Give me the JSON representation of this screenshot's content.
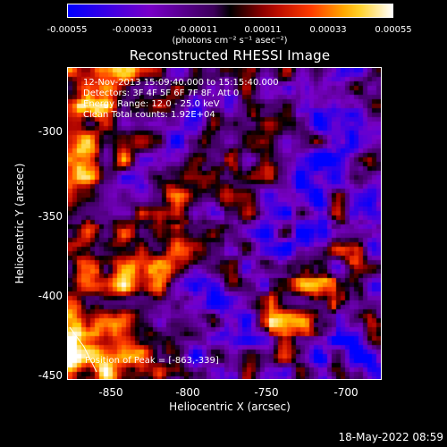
{
  "colorbar": {
    "ticks": [
      "-0.00055",
      "-0.00033",
      "-0.00011",
      "0.00011",
      "0.00033",
      "0.00055"
    ],
    "units": "(photons cm⁻² s⁻¹ asec⁻²)"
  },
  "title": "Reconstructed RHESSI Image",
  "info": {
    "line1": "12-Nov-2013 15:09:40.000 to 15:15:40.000",
    "line2": "Detectors: 3F 4F 5F 6F 7F 8F, Att 0",
    "line3": "Energy Range: 12.0 - 25.0 keV",
    "line4": "Clean     Total counts: 1.92E+04",
    "peak": "Position of Peak = [-863,-339]"
  },
  "chart_data": {
    "type": "heatmap",
    "title": "Reconstructed RHESSI Image",
    "xlabel": "Heliocentric X (arcsec)",
    "ylabel": "Heliocentric Y (arcsec)",
    "x_ticks": [
      "-850",
      "-800",
      "-750",
      "-700"
    ],
    "y_ticks": [
      "-300",
      "-350",
      "-400",
      "-450"
    ],
    "xlim": [
      -875,
      -680
    ],
    "ylim": [
      -452,
      -258
    ],
    "colorbar_range": [
      -0.00055,
      0.00055
    ],
    "peak": [
      -863,
      -339
    ]
  },
  "footer": "18-May-2022 08:59"
}
